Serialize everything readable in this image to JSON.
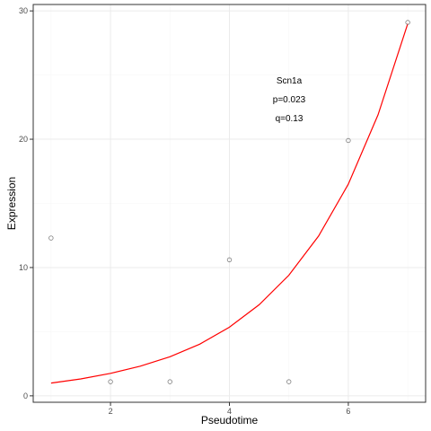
{
  "chart_data": {
    "type": "scatter",
    "title": "",
    "xlabel": "Pseudotime",
    "ylabel": "Expression",
    "xlim": [
      0.7,
      7.3
    ],
    "ylim": [
      -0.5,
      30.5
    ],
    "x_ticks": [
      2,
      4,
      6
    ],
    "y_ticks": [
      0,
      10,
      20,
      30
    ],
    "x_tick_labels": [
      "2",
      "4",
      "6"
    ],
    "y_tick_labels": [
      "0",
      "10",
      "20",
      "30"
    ],
    "x_minor_ticks": [
      1,
      3,
      5,
      7
    ],
    "y_minor_ticks": [
      5,
      15,
      25
    ],
    "grid": true,
    "points": [
      {
        "x": 1,
        "y": 12.3
      },
      {
        "x": 2,
        "y": 1.1
      },
      {
        "x": 3,
        "y": 1.1
      },
      {
        "x": 4,
        "y": 10.6
      },
      {
        "x": 5,
        "y": 1.1
      },
      {
        "x": 6,
        "y": 19.9
      },
      {
        "x": 7,
        "y": 29.1
      }
    ],
    "fit_curve": {
      "color": "#ff0000",
      "x": [
        1.0,
        1.5,
        2.0,
        2.5,
        3.0,
        3.5,
        4.0,
        4.5,
        5.0,
        5.5,
        6.0,
        6.5,
        7.0
      ],
      "y": [
        1.0,
        1.32,
        1.75,
        2.31,
        3.05,
        4.03,
        5.35,
        7.1,
        9.4,
        12.45,
        16.5,
        21.9,
        29.0
      ]
    },
    "annotations": [
      "Scn1a",
      "p=0.023",
      "q=0.13"
    ],
    "colors": {
      "point_stroke": "#7f7f7f",
      "curve": "#ff0000",
      "grid_major": "#ebebeb",
      "grid_minor": "#f5f5f5",
      "panel_border": "#333333"
    }
  }
}
